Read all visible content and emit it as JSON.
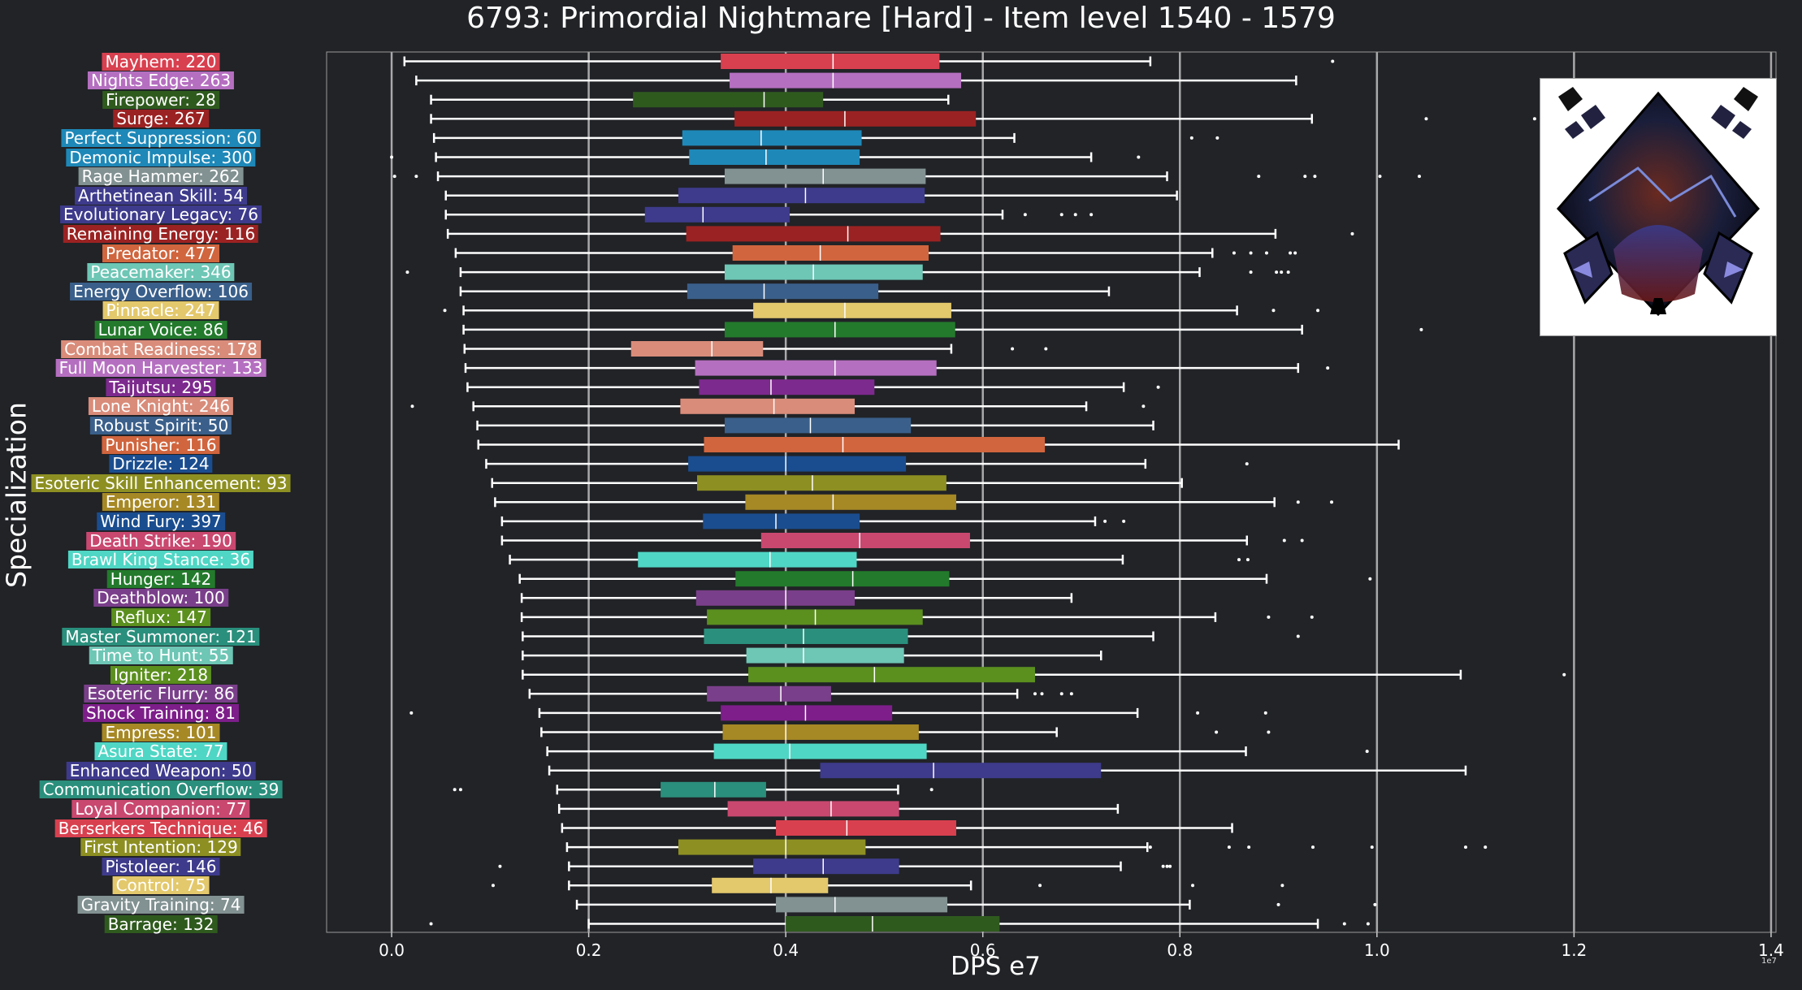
{
  "chart_data": {
    "type": "box",
    "title": "6793: Primordial Nightmare [Hard] - Item level 1540 - 1579",
    "xlabel": "DPS e7",
    "ylabel": "Specialization",
    "x_multiplier": "1e7",
    "xlim": [
      -0.066,
      1.405
    ],
    "xticks": [
      "0.0",
      "0.2",
      "0.4",
      "0.6",
      "0.8",
      "1.0",
      "1.2",
      "1.4"
    ],
    "grid": "vertical",
    "categories": [
      {
        "label": "Mayhem: 220",
        "color": "#d8404f",
        "whisker": [
          0.013,
          0.77
        ],
        "box": [
          0.334,
          0.556
        ],
        "median": 0.448,
        "fliers": [
          0.955
        ]
      },
      {
        "label": "Nights Edge: 263",
        "color": "#b56fc0",
        "whisker": [
          0.025,
          0.918
        ],
        "box": [
          0.343,
          0.578
        ],
        "median": 0.448,
        "fliers": []
      },
      {
        "label": "Firepower: 28",
        "color": "#2f5a1e",
        "whisker": [
          0.04,
          0.565
        ],
        "box": [
          0.245,
          0.438
        ],
        "median": 0.378,
        "fliers": []
      },
      {
        "label": "Surge: 267",
        "color": "#9b2222",
        "whisker": [
          0.04,
          0.934
        ],
        "box": [
          0.348,
          0.593
        ],
        "median": 0.46,
        "fliers": [
          1.05,
          1.16
        ]
      },
      {
        "label": "Perfect Suppression: 60",
        "color": "#1e88b8",
        "whisker": [
          0.043,
          0.632
        ],
        "box": [
          0.295,
          0.477
        ],
        "median": 0.375,
        "fliers": [
          0.812,
          0.838
        ]
      },
      {
        "label": "Demonic Impulse: 300",
        "color": "#1e88b8",
        "whisker": [
          0.045,
          0.71
        ],
        "box": [
          0.302,
          0.475
        ],
        "median": 0.38,
        "fliers": [
          0.0,
          0.758
        ]
      },
      {
        "label": "Rage Hammer: 262",
        "color": "#829192",
        "whisker": [
          0.047,
          0.787
        ],
        "box": [
          0.338,
          0.542
        ],
        "median": 0.438,
        "fliers": [
          0.003,
          0.025,
          0.88,
          0.927,
          0.937,
          1.003,
          1.043
        ]
      },
      {
        "label": "Arthetinean Skill: 54",
        "color": "#3e3b8c",
        "whisker": [
          0.055,
          0.797
        ],
        "box": [
          0.291,
          0.541
        ],
        "median": 0.42,
        "fliers": []
      },
      {
        "label": "Evolutionary Legacy: 76",
        "color": "#3e3b8c",
        "whisker": [
          0.055,
          0.62
        ],
        "box": [
          0.257,
          0.404
        ],
        "median": 0.316,
        "fliers": [
          0.643,
          0.68,
          0.694,
          0.71
        ]
      },
      {
        "label": "Remaining Energy: 116",
        "color": "#9b2222",
        "whisker": [
          0.057,
          0.897
        ],
        "box": [
          0.299,
          0.557
        ],
        "median": 0.463,
        "fliers": [
          0.975
        ]
      },
      {
        "label": "Predator: 477",
        "color": "#d0653e",
        "whisker": [
          0.065,
          0.833
        ],
        "box": [
          0.346,
          0.545
        ],
        "median": 0.435,
        "fliers": [
          0.855,
          0.872,
          0.888,
          0.912,
          0.917
        ]
      },
      {
        "label": "Peacemaker: 346",
        "color": "#6ec6b5",
        "whisker": [
          0.07,
          0.82
        ],
        "box": [
          0.338,
          0.539
        ],
        "median": 0.428,
        "fliers": [
          0.016,
          0.872,
          0.898,
          0.903,
          0.91
        ]
      },
      {
        "label": "Energy Overflow: 106",
        "color": "#3a5f8a",
        "whisker": [
          0.07,
          0.728
        ],
        "box": [
          0.3,
          0.494
        ],
        "median": 0.378,
        "fliers": []
      },
      {
        "label": "Pinnacle: 247",
        "color": "#e3c86c",
        "whisker": [
          0.073,
          0.858
        ],
        "box": [
          0.367,
          0.568
        ],
        "median": 0.46,
        "fliers": [
          0.054,
          0.895,
          0.94
        ]
      },
      {
        "label": "Lunar Voice: 86",
        "color": "#237a2c",
        "whisker": [
          0.073,
          0.924
        ],
        "box": [
          0.338,
          0.572
        ],
        "median": 0.45,
        "fliers": [
          1.045
        ]
      },
      {
        "label": "Combat Readiness: 178",
        "color": "#d98c7a",
        "whisker": [
          0.074,
          0.568
        ],
        "box": [
          0.243,
          0.377
        ],
        "median": 0.325,
        "fliers": [
          0.63,
          0.664
        ]
      },
      {
        "label": "Full Moon Harvester: 133",
        "color": "#b56fc0",
        "whisker": [
          0.075,
          0.92
        ],
        "box": [
          0.308,
          0.553
        ],
        "median": 0.45,
        "fliers": [
          0.95
        ]
      },
      {
        "label": "Taijutsu: 295",
        "color": "#7d2a8e",
        "whisker": [
          0.077,
          0.743
        ],
        "box": [
          0.312,
          0.49
        ],
        "median": 0.385,
        "fliers": [
          0.778
        ]
      },
      {
        "label": "Lone Knight: 246",
        "color": "#d98c7a",
        "whisker": [
          0.083,
          0.705
        ],
        "box": [
          0.293,
          0.47
        ],
        "median": 0.388,
        "fliers": [
          0.021,
          0.763
        ]
      },
      {
        "label": "Robust Spirit: 50",
        "color": "#3a5f8a",
        "whisker": [
          0.087,
          0.773
        ],
        "box": [
          0.338,
          0.527
        ],
        "median": 0.425,
        "fliers": []
      },
      {
        "label": "Punisher: 116",
        "color": "#d0653e",
        "whisker": [
          0.088,
          1.022
        ],
        "box": [
          0.317,
          0.663
        ],
        "median": 0.458,
        "fliers": []
      },
      {
        "label": "Drizzle: 124",
        "color": "#1a4d8f",
        "whisker": [
          0.096,
          0.765
        ],
        "box": [
          0.301,
          0.522
        ],
        "median": 0.4,
        "fliers": [
          0.868
        ]
      },
      {
        "label": "Esoteric Skill Enhancement: 93",
        "color": "#8d8f22",
        "whisker": [
          0.102,
          0.802
        ],
        "box": [
          0.31,
          0.563
        ],
        "median": 0.427,
        "fliers": []
      },
      {
        "label": "Emperor: 131",
        "color": "#a68825",
        "whisker": [
          0.105,
          0.896
        ],
        "box": [
          0.359,
          0.573
        ],
        "median": 0.448,
        "fliers": [
          0.92,
          0.954
        ]
      },
      {
        "label": "Wind Fury: 397",
        "color": "#1a4d8f",
        "whisker": [
          0.112,
          0.714
        ],
        "box": [
          0.316,
          0.475
        ],
        "median": 0.39,
        "fliers": [
          0.724,
          0.743
        ]
      },
      {
        "label": "Death Strike: 190",
        "color": "#c94870",
        "whisker": [
          0.112,
          0.868
        ],
        "box": [
          0.375,
          0.587
        ],
        "median": 0.475,
        "fliers": [
          0.906,
          0.924
        ]
      },
      {
        "label": "Brawl King Stance: 36",
        "color": "#4fd6c4",
        "whisker": [
          0.12,
          0.742
        ],
        "box": [
          0.25,
          0.472
        ],
        "median": 0.384,
        "fliers": [
          0.86,
          0.869
        ]
      },
      {
        "label": "Hunger: 142",
        "color": "#237a2c",
        "whisker": [
          0.13,
          0.888
        ],
        "box": [
          0.349,
          0.566
        ],
        "median": 0.468,
        "fliers": [
          0.993
        ]
      },
      {
        "label": "Deathblow: 100",
        "color": "#7a3f8a",
        "whisker": [
          0.132,
          0.69
        ],
        "box": [
          0.309,
          0.47
        ],
        "median": 0.4,
        "fliers": []
      },
      {
        "label": "Reflux: 147",
        "color": "#5b8f1e",
        "whisker": [
          0.132,
          0.836
        ],
        "box": [
          0.32,
          0.539
        ],
        "median": 0.43,
        "fliers": [
          0.89,
          0.934
        ]
      },
      {
        "label": "Master Summoner: 121",
        "color": "#2a8f7c",
        "whisker": [
          0.133,
          0.773
        ],
        "box": [
          0.317,
          0.524
        ],
        "median": 0.418,
        "fliers": [
          0.92
        ]
      },
      {
        "label": "Time to Hunt: 55",
        "color": "#6ec6b5",
        "whisker": [
          0.133,
          0.72
        ],
        "box": [
          0.36,
          0.52
        ],
        "median": 0.418,
        "fliers": []
      },
      {
        "label": "Igniter: 218",
        "color": "#5b8f1e",
        "whisker": [
          0.133,
          1.085
        ],
        "box": [
          0.362,
          0.653
        ],
        "median": 0.49,
        "fliers": [
          1.19
        ]
      },
      {
        "label": "Esoteric Flurry: 86",
        "color": "#7a3f8a",
        "whisker": [
          0.14,
          0.635
        ],
        "box": [
          0.32,
          0.446
        ],
        "median": 0.395,
        "fliers": [
          0.653,
          0.66,
          0.68,
          0.69
        ]
      },
      {
        "label": "Shock Training: 81",
        "color": "#7d1e8a",
        "whisker": [
          0.15,
          0.757
        ],
        "box": [
          0.334,
          0.508
        ],
        "median": 0.42,
        "fliers": [
          0.02,
          0.818,
          0.887
        ]
      },
      {
        "label": "Empress: 101",
        "color": "#a68825",
        "whisker": [
          0.152,
          0.675
        ],
        "box": [
          0.336,
          0.535
        ],
        "median": 0.4,
        "fliers": [
          0.837,
          0.89
        ]
      },
      {
        "label": "Asura State: 77",
        "color": "#4fd6c4",
        "whisker": [
          0.158,
          0.867
        ],
        "box": [
          0.327,
          0.543
        ],
        "median": 0.404,
        "fliers": [
          0.99
        ]
      },
      {
        "label": "Enhanced Weapon: 50",
        "color": "#3e3b8c",
        "whisker": [
          0.16,
          1.09
        ],
        "box": [
          0.435,
          0.72
        ],
        "median": 0.55,
        "fliers": []
      },
      {
        "label": "Communication Overflow: 39",
        "color": "#2a8f7c",
        "whisker": [
          0.168,
          0.514
        ],
        "box": [
          0.273,
          0.38
        ],
        "median": 0.328,
        "fliers": [
          0.064,
          0.07,
          0.548
        ]
      },
      {
        "label": "Loyal Companion: 77",
        "color": "#c94870",
        "whisker": [
          0.17,
          0.737
        ],
        "box": [
          0.341,
          0.515
        ],
        "median": 0.446,
        "fliers": []
      },
      {
        "label": "Berserkers Technique: 46",
        "color": "#d8404f",
        "whisker": [
          0.173,
          0.853
        ],
        "box": [
          0.39,
          0.573
        ],
        "median": 0.462,
        "fliers": []
      },
      {
        "label": "First Intention: 129",
        "color": "#8d8f22",
        "whisker": [
          0.178,
          0.767
        ],
        "box": [
          0.291,
          0.481
        ],
        "median": 0.4,
        "fliers": [
          0.77,
          0.85,
          0.87,
          0.935,
          0.995,
          1.09,
          1.11
        ]
      },
      {
        "label": "Pistoleer: 146",
        "color": "#3e3b8c",
        "whisker": [
          0.18,
          0.74
        ],
        "box": [
          0.367,
          0.515
        ],
        "median": 0.438,
        "fliers": [
          0.11,
          0.783,
          0.787,
          0.79
        ]
      },
      {
        "label": "Control: 75",
        "color": "#e3c86c",
        "whisker": [
          0.18,
          0.588
        ],
        "box": [
          0.325,
          0.443
        ],
        "median": 0.385,
        "fliers": [
          0.103,
          0.658,
          0.813,
          0.904
        ]
      },
      {
        "label": "Gravity Training: 74",
        "color": "#829192",
        "whisker": [
          0.188,
          0.81
        ],
        "box": [
          0.39,
          0.564
        ],
        "median": 0.45,
        "fliers": [
          0.9,
          0.998
        ]
      },
      {
        "label": "Barrage: 132",
        "color": "#2f5a1e",
        "whisker": [
          0.2,
          0.94
        ],
        "box": [
          0.4,
          0.617
        ],
        "median": 0.488,
        "fliers": [
          0.04,
          0.967,
          0.991
        ]
      }
    ]
  }
}
